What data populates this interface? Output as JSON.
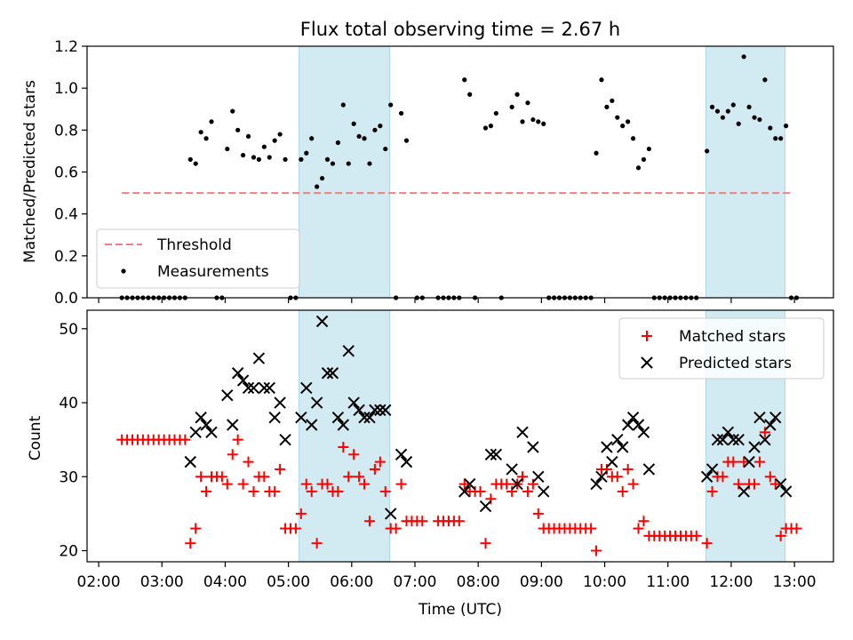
{
  "title": "Flux total observing time = 2.67 h",
  "colors": {
    "threshold": "#f08080",
    "measurement": "#000000",
    "matched": "#ff0000",
    "predicted": "#000000",
    "shade": "#add8e6"
  },
  "chart_data": [
    {
      "type": "scatter",
      "ylabel": "Matched/Predicted stars",
      "ylim": [
        0,
        1.2
      ],
      "yticks": [
        "0.0",
        "0.2",
        "0.4",
        "0.6",
        "0.8",
        "1.0",
        "1.2"
      ],
      "shaded_intervals": [
        [
          "05:10",
          "06:36"
        ],
        [
          "11:36",
          "12:51"
        ]
      ],
      "legend": {
        "position": "lower-left",
        "threshold": "Threshold",
        "measurements": "Measurements"
      },
      "threshold": {
        "value": 0.5,
        "x_range": [
          "02:22",
          "12:58"
        ]
      },
      "measurements": [
        [
          "02:22",
          0
        ],
        [
          "02:27",
          0
        ],
        [
          "02:32",
          0
        ],
        [
          "02:37",
          0
        ],
        [
          "02:42",
          0
        ],
        [
          "02:47",
          0
        ],
        [
          "02:52",
          0
        ],
        [
          "02:57",
          0
        ],
        [
          "03:02",
          0
        ],
        [
          "03:07",
          0
        ],
        [
          "03:12",
          0
        ],
        [
          "03:17",
          0
        ],
        [
          "03:22",
          0
        ],
        [
          "03:27",
          0.66
        ],
        [
          "03:32",
          0.64
        ],
        [
          "03:37",
          0.79
        ],
        [
          "03:42",
          0.76
        ],
        [
          "03:47",
          0.84
        ],
        [
          "03:52",
          0
        ],
        [
          "03:57",
          0
        ],
        [
          "04:02",
          0.71
        ],
        [
          "04:07",
          0.89
        ],
        [
          "04:12",
          0.8
        ],
        [
          "04:17",
          0.68
        ],
        [
          "04:22",
          0.77
        ],
        [
          "04:27",
          0.67
        ],
        [
          "04:32",
          0.66
        ],
        [
          "04:37",
          0.72
        ],
        [
          "04:42",
          0.67
        ],
        [
          "04:47",
          0.75
        ],
        [
          "04:52",
          0.78
        ],
        [
          "04:57",
          0.66
        ],
        [
          "05:02",
          0
        ],
        [
          "05:07",
          0
        ],
        [
          "05:12",
          0.66
        ],
        [
          "05:17",
          0.69
        ],
        [
          "05:22",
          0.76
        ],
        [
          "05:27",
          0.53
        ],
        [
          "05:32",
          0.57
        ],
        [
          "05:37",
          0.66
        ],
        [
          "05:42",
          0.64
        ],
        [
          "05:47",
          0.74
        ],
        [
          "05:52",
          0.92
        ],
        [
          "05:57",
          0.64
        ],
        [
          "06:02",
          0.83
        ],
        [
          "06:07",
          0.77
        ],
        [
          "06:12",
          0.76
        ],
        [
          "06:17",
          0.64
        ],
        [
          "06:22",
          0.8
        ],
        [
          "06:27",
          0.82
        ],
        [
          "06:32",
          0.71
        ],
        [
          "06:37",
          0.92
        ],
        [
          "06:42",
          0
        ],
        [
          "06:47",
          0.88
        ],
        [
          "06:52",
          0.75
        ],
        [
          "07:02",
          0
        ],
        [
          "07:07",
          0
        ],
        [
          "07:22",
          0
        ],
        [
          "07:27",
          0
        ],
        [
          "07:32",
          0
        ],
        [
          "07:37",
          0
        ],
        [
          "07:42",
          0
        ],
        [
          "07:47",
          1.04
        ],
        [
          "07:52",
          0.97
        ],
        [
          "07:57",
          0
        ],
        [
          "08:07",
          0.81
        ],
        [
          "08:12",
          0.82
        ],
        [
          "08:17",
          0.88
        ],
        [
          "08:22",
          0
        ],
        [
          "08:32",
          0.91
        ],
        [
          "08:37",
          0.97
        ],
        [
          "08:42",
          0.84
        ],
        [
          "08:47",
          0.93
        ],
        [
          "08:52",
          0.85
        ],
        [
          "08:57",
          0.84
        ],
        [
          "09:02",
          0.83
        ],
        [
          "09:07",
          0
        ],
        [
          "09:12",
          0
        ],
        [
          "09:17",
          0
        ],
        [
          "09:22",
          0
        ],
        [
          "09:27",
          0
        ],
        [
          "09:32",
          0
        ],
        [
          "09:37",
          0
        ],
        [
          "09:42",
          0
        ],
        [
          "09:47",
          0
        ],
        [
          "09:52",
          0.69
        ],
        [
          "09:57",
          1.04
        ],
        [
          "10:02",
          0.91
        ],
        [
          "10:07",
          0.94
        ],
        [
          "10:12",
          0.86
        ],
        [
          "10:17",
          0.82
        ],
        [
          "10:22",
          0.84
        ],
        [
          "10:27",
          0.76
        ],
        [
          "10:32",
          0.62
        ],
        [
          "10:37",
          0.66
        ],
        [
          "10:42",
          0.71
        ],
        [
          "10:47",
          0
        ],
        [
          "10:52",
          0
        ],
        [
          "10:57",
          0
        ],
        [
          "11:02",
          0
        ],
        [
          "11:07",
          0
        ],
        [
          "11:12",
          0
        ],
        [
          "11:17",
          0
        ],
        [
          "11:22",
          0
        ],
        [
          "11:27",
          0
        ],
        [
          "11:37",
          0.7
        ],
        [
          "11:42",
          0.91
        ],
        [
          "11:47",
          0.89
        ],
        [
          "11:52",
          0.86
        ],
        [
          "11:57",
          0.89
        ],
        [
          "12:02",
          0.92
        ],
        [
          "12:07",
          0.83
        ],
        [
          "12:12",
          1.15
        ],
        [
          "12:17",
          0.91
        ],
        [
          "12:22",
          0.86
        ],
        [
          "12:27",
          0.85
        ],
        [
          "12:32",
          1.04
        ],
        [
          "12:37",
          0.81
        ],
        [
          "12:42",
          0.76
        ],
        [
          "12:47",
          0.76
        ],
        [
          "12:52",
          0.82
        ],
        [
          "12:57",
          0
        ],
        [
          "13:02",
          0
        ]
      ]
    },
    {
      "type": "scatter",
      "xlabel": "Time (UTC)",
      "ylabel": "Count",
      "ylim": [
        18.5,
        52.5
      ],
      "yticks": [
        "20",
        "30",
        "40",
        "50"
      ],
      "xlim": [
        "01:49",
        "13:37"
      ],
      "xticks": [
        "02:00",
        "03:00",
        "04:00",
        "05:00",
        "06:00",
        "07:00",
        "08:00",
        "09:00",
        "10:00",
        "11:00",
        "12:00",
        "13:00"
      ],
      "shaded_intervals": [
        [
          "05:10",
          "06:36"
        ],
        [
          "11:36",
          "12:51"
        ]
      ],
      "legend": {
        "position": "upper-right",
        "matched": "Matched stars",
        "predicted": "Predicted stars"
      },
      "matched": [
        [
          "02:22",
          35
        ],
        [
          "02:27",
          35
        ],
        [
          "02:32",
          35
        ],
        [
          "02:37",
          35
        ],
        [
          "02:42",
          35
        ],
        [
          "02:47",
          35
        ],
        [
          "02:52",
          35
        ],
        [
          "02:57",
          35
        ],
        [
          "03:02",
          35
        ],
        [
          "03:07",
          35
        ],
        [
          "03:12",
          35
        ],
        [
          "03:17",
          35
        ],
        [
          "03:22",
          35
        ],
        [
          "03:27",
          21
        ],
        [
          "03:32",
          23
        ],
        [
          "03:37",
          30
        ],
        [
          "03:42",
          28
        ],
        [
          "03:47",
          30
        ],
        [
          "03:52",
          30
        ],
        [
          "03:57",
          30
        ],
        [
          "04:02",
          29
        ],
        [
          "04:07",
          33
        ],
        [
          "04:12",
          35
        ],
        [
          "04:17",
          29
        ],
        [
          "04:22",
          32
        ],
        [
          "04:27",
          28
        ],
        [
          "04:32",
          30
        ],
        [
          "04:37",
          30
        ],
        [
          "04:42",
          28
        ],
        [
          "04:47",
          28
        ],
        [
          "04:52",
          31
        ],
        [
          "04:57",
          23
        ],
        [
          "05:02",
          23
        ],
        [
          "05:07",
          23
        ],
        [
          "05:12",
          25
        ],
        [
          "05:17",
          29
        ],
        [
          "05:22",
          28
        ],
        [
          "05:27",
          21
        ],
        [
          "05:32",
          29
        ],
        [
          "05:37",
          29
        ],
        [
          "05:42",
          28
        ],
        [
          "05:47",
          28
        ],
        [
          "05:52",
          34
        ],
        [
          "05:57",
          30
        ],
        [
          "06:02",
          33
        ],
        [
          "06:07",
          30
        ],
        [
          "06:12",
          29
        ],
        [
          "06:17",
          24
        ],
        [
          "06:22",
          31
        ],
        [
          "06:27",
          32
        ],
        [
          "06:32",
          28
        ],
        [
          "06:37",
          23
        ],
        [
          "06:42",
          23
        ],
        [
          "06:47",
          29
        ],
        [
          "06:52",
          24
        ],
        [
          "06:57",
          24
        ],
        [
          "07:02",
          24
        ],
        [
          "07:07",
          24
        ],
        [
          "07:22",
          24
        ],
        [
          "07:27",
          24
        ],
        [
          "07:32",
          24
        ],
        [
          "07:37",
          24
        ],
        [
          "07:42",
          24
        ],
        [
          "07:47",
          29
        ],
        [
          "07:52",
          28
        ],
        [
          "07:57",
          28
        ],
        [
          "08:02",
          28
        ],
        [
          "08:07",
          21
        ],
        [
          "08:12",
          27
        ],
        [
          "08:17",
          29
        ],
        [
          "08:22",
          29
        ],
        [
          "08:27",
          29
        ],
        [
          "08:32",
          28
        ],
        [
          "08:37",
          29
        ],
        [
          "08:42",
          30
        ],
        [
          "08:47",
          28
        ],
        [
          "08:52",
          29
        ],
        [
          "08:57",
          25
        ],
        [
          "09:02",
          23
        ],
        [
          "09:07",
          23
        ],
        [
          "09:12",
          23
        ],
        [
          "09:17",
          23
        ],
        [
          "09:22",
          23
        ],
        [
          "09:27",
          23
        ],
        [
          "09:32",
          23
        ],
        [
          "09:37",
          23
        ],
        [
          "09:42",
          23
        ],
        [
          "09:47",
          23
        ],
        [
          "09:52",
          20
        ],
        [
          "09:57",
          31
        ],
        [
          "10:02",
          31
        ],
        [
          "10:07",
          30
        ],
        [
          "10:12",
          30
        ],
        [
          "10:17",
          28
        ],
        [
          "10:22",
          31
        ],
        [
          "10:27",
          29
        ],
        [
          "10:32",
          23
        ],
        [
          "10:37",
          24
        ],
        [
          "10:42",
          22
        ],
        [
          "10:47",
          22
        ],
        [
          "10:52",
          22
        ],
        [
          "10:57",
          22
        ],
        [
          "11:02",
          22
        ],
        [
          "11:07",
          22
        ],
        [
          "11:12",
          22
        ],
        [
          "11:17",
          22
        ],
        [
          "11:22",
          22
        ],
        [
          "11:27",
          22
        ],
        [
          "11:37",
          21
        ],
        [
          "11:42",
          28
        ],
        [
          "11:47",
          30
        ],
        [
          "11:52",
          30
        ],
        [
          "11:57",
          32
        ],
        [
          "12:02",
          32
        ],
        [
          "12:07",
          29
        ],
        [
          "12:12",
          32
        ],
        [
          "12:17",
          29
        ],
        [
          "12:22",
          29
        ],
        [
          "12:27",
          32
        ],
        [
          "12:32",
          36
        ],
        [
          "12:37",
          30
        ],
        [
          "12:42",
          29
        ],
        [
          "12:47",
          22
        ],
        [
          "12:52",
          23
        ],
        [
          "12:57",
          23
        ],
        [
          "13:02",
          23
        ]
      ],
      "predicted": [
        [
          "03:27",
          32
        ],
        [
          "03:32",
          36
        ],
        [
          "03:37",
          38
        ],
        [
          "03:42",
          37
        ],
        [
          "03:47",
          36
        ],
        [
          "04:02",
          41
        ],
        [
          "04:07",
          37
        ],
        [
          "04:12",
          44
        ],
        [
          "04:17",
          43
        ],
        [
          "04:22",
          42
        ],
        [
          "04:27",
          42
        ],
        [
          "04:32",
          46
        ],
        [
          "04:37",
          42
        ],
        [
          "04:42",
          42
        ],
        [
          "04:47",
          38
        ],
        [
          "04:52",
          40
        ],
        [
          "04:57",
          35
        ],
        [
          "05:12",
          38
        ],
        [
          "05:17",
          42
        ],
        [
          "05:22",
          37
        ],
        [
          "05:27",
          40
        ],
        [
          "05:32",
          51
        ],
        [
          "05:37",
          44
        ],
        [
          "05:42",
          44
        ],
        [
          "05:47",
          38
        ],
        [
          "05:52",
          37
        ],
        [
          "05:57",
          47
        ],
        [
          "06:02",
          40
        ],
        [
          "06:07",
          39
        ],
        [
          "06:12",
          38
        ],
        [
          "06:17",
          38
        ],
        [
          "06:22",
          39
        ],
        [
          "06:27",
          39
        ],
        [
          "06:32",
          39
        ],
        [
          "06:37",
          25
        ],
        [
          "06:47",
          33
        ],
        [
          "06:52",
          32
        ],
        [
          "07:47",
          28
        ],
        [
          "07:52",
          29
        ],
        [
          "08:07",
          26
        ],
        [
          "08:12",
          33
        ],
        [
          "08:17",
          33
        ],
        [
          "08:32",
          31
        ],
        [
          "08:37",
          29
        ],
        [
          "08:42",
          36
        ],
        [
          "08:52",
          34
        ],
        [
          "08:57",
          30
        ],
        [
          "09:02",
          28
        ],
        [
          "09:52",
          29
        ],
        [
          "09:57",
          30
        ],
        [
          "10:02",
          34
        ],
        [
          "10:07",
          32
        ],
        [
          "10:12",
          35
        ],
        [
          "10:17",
          34
        ],
        [
          "10:22",
          37
        ],
        [
          "10:27",
          38
        ],
        [
          "10:32",
          37
        ],
        [
          "10:37",
          36
        ],
        [
          "10:42",
          31
        ],
        [
          "11:37",
          30
        ],
        [
          "11:42",
          31
        ],
        [
          "11:47",
          35
        ],
        [
          "11:52",
          35
        ],
        [
          "11:57",
          36
        ],
        [
          "12:02",
          35
        ],
        [
          "12:07",
          35
        ],
        [
          "12:12",
          28
        ],
        [
          "12:17",
          32
        ],
        [
          "12:22",
          34
        ],
        [
          "12:27",
          38
        ],
        [
          "12:32",
          35
        ],
        [
          "12:37",
          37
        ],
        [
          "12:42",
          38
        ],
        [
          "12:47",
          29
        ],
        [
          "12:52",
          28
        ]
      ]
    }
  ]
}
